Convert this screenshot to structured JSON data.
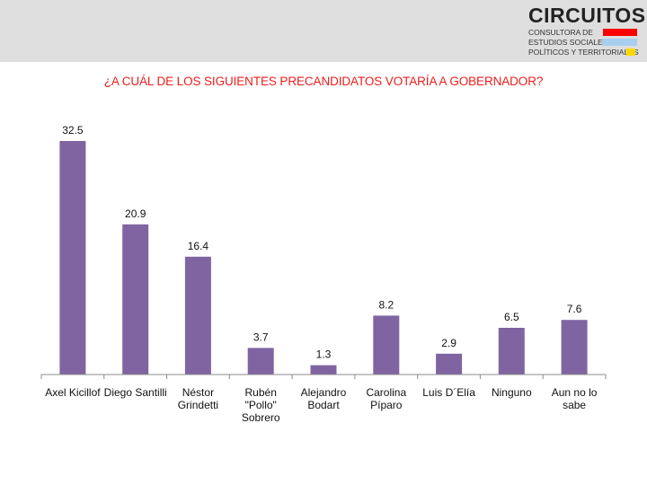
{
  "header": {
    "brand_name": "CIRCUITOS",
    "brand_lines": [
      "CONSULTORA DE",
      "ESTUDIOS SOCIALES,",
      "POLÍTICOS Y TERRITORIALES"
    ],
    "brand_colors": [
      "#ff0000",
      "#a8cff0",
      "#ffd700"
    ]
  },
  "chart_data": {
    "type": "bar",
    "title": "¿A CUÁL DE LOS SIGUIENTES PRECANDIDATOS VOTARÍA A GOBERNADOR?",
    "categories": [
      [
        "Axel Kicillof"
      ],
      [
        "Diego Santilli"
      ],
      [
        "Néstor",
        "Grindetti"
      ],
      [
        "Rubén",
        "\"Pollo\"",
        "Sobrero"
      ],
      [
        "Alejandro",
        "Bodart"
      ],
      [
        "Carolina",
        "Píparo"
      ],
      [
        "Luis D´Elía"
      ],
      [
        "Ninguno"
      ],
      [
        "Aun no lo",
        "sabe"
      ]
    ],
    "values": [
      32.5,
      20.9,
      16.4,
      3.7,
      1.3,
      8.2,
      2.9,
      6.5,
      7.6
    ],
    "value_labels": [
      "32.5",
      "20.9",
      "16.4",
      "3.7",
      "1.3",
      "8.2",
      "2.9",
      "6.5",
      "7.6"
    ],
    "bar_color": "#8064a2",
    "title_color": "#ee1c1c",
    "ylim": [
      0,
      32.5
    ],
    "grid": false,
    "legend": "none"
  }
}
